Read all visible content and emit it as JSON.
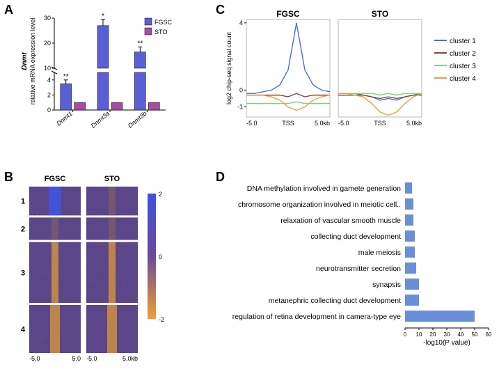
{
  "panelA": {
    "label": "A",
    "ylabel_line1": "Dnmt",
    "ylabel_line2": "relative mRNA expression level",
    "legend": [
      "FGSC",
      "STO"
    ],
    "legend_colors": [
      "#5b5fd6",
      "#a94ca0"
    ],
    "categories": [
      "Dnmt1",
      "Dnmt3a",
      "Dnmt3b"
    ],
    "bars": [
      {
        "fgsc": 3.5,
        "fgsc_err": 0.5,
        "sto": 1.0,
        "sig": "**"
      },
      {
        "fgsc": 27.0,
        "fgsc_err": 2.5,
        "sto": 1.0,
        "sig": "*"
      },
      {
        "fgsc": 16.5,
        "fgsc_err": 2.0,
        "sto": 1.0,
        "sig": "**"
      }
    ],
    "ytick_lower": [
      0,
      2,
      4
    ],
    "ytick_upper": [
      10,
      20,
      30
    ],
    "break_low": 5,
    "break_high": 10,
    "colors": {
      "bar_fgsc": "#5b5fd6",
      "bar_sto": "#a94ca0",
      "axis": "#000000"
    }
  },
  "panelB": {
    "label": "B",
    "col_labels": [
      "FGSC",
      "STO"
    ],
    "clusters": [
      "1",
      "2",
      "3",
      "4"
    ],
    "x_ticks": [
      "-5.0",
      "5.0",
      "-5.0",
      "5.0kb"
    ],
    "colorbar": {
      "ticks": [
        "2",
        "0",
        "-2"
      ],
      "top_color": "#3f4fe0",
      "mid_color": "#6b4a9a",
      "bottom_color": "#f0a030"
    }
  },
  "panelC": {
    "label": "C",
    "col_labels": [
      "FGSC",
      "STO"
    ],
    "ylabel": "log2 chip-seq signal count",
    "legend": [
      "cluster 1",
      "cluster 2",
      "cluster 3",
      "cluster 4"
    ],
    "legend_colors": [
      "#4a6fd4",
      "#7a4a3a",
      "#7fd47a",
      "#e8a040"
    ],
    "x_ticks": [
      "-5.0",
      "TSS",
      "5.0kb"
    ],
    "y_ticks": [
      "-1",
      "0",
      "4"
    ],
    "fgsc_series": {
      "cluster1": [
        -0.2,
        -0.2,
        -0.1,
        0.0,
        0.3,
        1.2,
        4.0,
        1.2,
        0.3,
        0.0,
        -0.1
      ],
      "cluster2": [
        -0.3,
        -0.3,
        -0.3,
        -0.3,
        -0.3,
        -0.4,
        -0.2,
        -0.4,
        -0.3,
        -0.3,
        -0.3
      ],
      "cluster3": [
        -0.8,
        -0.8,
        -0.8,
        -0.8,
        -0.8,
        -0.8,
        -0.7,
        -0.8,
        -0.8,
        -0.8,
        -0.8
      ],
      "cluster4": [
        -0.3,
        -0.3,
        -0.3,
        -0.4,
        -0.6,
        -1.0,
        -1.2,
        -1.0,
        -0.6,
        -0.4,
        -0.3
      ]
    },
    "sto_series": {
      "cluster1": [
        -0.2,
        -0.2,
        -0.2,
        -0.3,
        -0.4,
        -0.6,
        -0.5,
        -0.6,
        -0.4,
        -0.3,
        -0.2
      ],
      "cluster2": [
        -0.3,
        -0.3,
        -0.3,
        -0.3,
        -0.4,
        -0.5,
        -0.4,
        -0.5,
        -0.4,
        -0.3,
        -0.3
      ],
      "cluster3": [
        -0.2,
        -0.2,
        -0.2,
        -0.2,
        -0.2,
        -0.3,
        -0.2,
        -0.3,
        -0.2,
        -0.2,
        -0.2
      ],
      "cluster4": [
        -0.2,
        -0.2,
        -0.3,
        -0.4,
        -0.8,
        -1.3,
        -1.5,
        -1.3,
        -0.8,
        -0.4,
        -0.2
      ]
    }
  },
  "panelD": {
    "label": "D",
    "xlabel": "-log10(P value)",
    "xmax": 60,
    "xticks": [
      0,
      10,
      20,
      30,
      40,
      50,
      60
    ],
    "bar_color": "#6a8fd8",
    "terms": [
      {
        "label": "DNA methylation involved in gamete generation",
        "value": 5
      },
      {
        "label": "chromosome organization involved in meiotic cell..",
        "value": 6
      },
      {
        "label": "relaxation of vascular smooth muscle",
        "value": 6
      },
      {
        "label": "collecting duct development",
        "value": 7
      },
      {
        "label": "male meiosis",
        "value": 7
      },
      {
        "label": "neurotransmitter secretion",
        "value": 8
      },
      {
        "label": "synapsis",
        "value": 10
      },
      {
        "label": "metanephric collecting duct development",
        "value": 10
      },
      {
        "label": "regulation of retina development in camera-type eye",
        "value": 50
      }
    ]
  }
}
